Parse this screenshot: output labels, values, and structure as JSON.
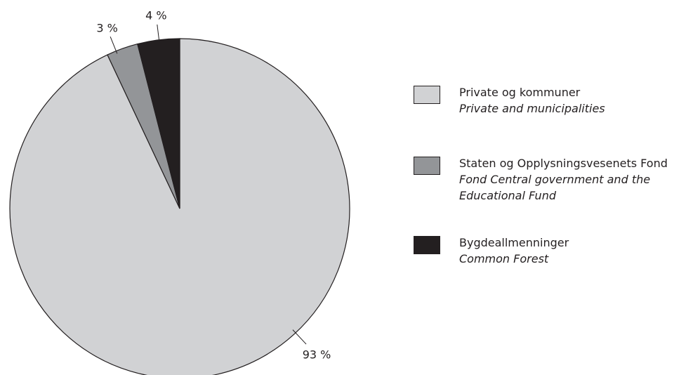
{
  "chart_data": {
    "type": "pie",
    "categories": [
      "Private og kommuner",
      "Staten og Opplysningsvesenets Fond",
      "Bygdeallmenninger"
    ],
    "categories_translation": [
      "Private and municipalities",
      "Fond Central government and the Educational Fund",
      "Common Forest"
    ],
    "values": [
      93,
      3,
      4
    ],
    "value_labels": [
      "93 %",
      "3 %",
      "4 %"
    ],
    "colors": [
      "#d1d2d4",
      "#939598",
      "#231f20"
    ]
  }
}
